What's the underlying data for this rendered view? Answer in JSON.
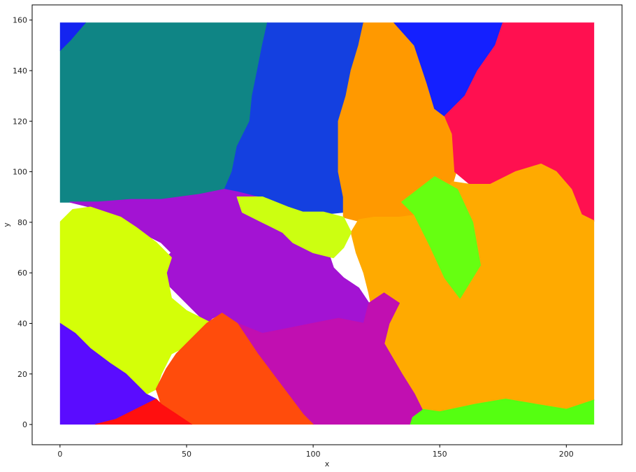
{
  "chart_data": {
    "type": "heatmap",
    "title": "",
    "xlabel": "x",
    "ylabel": "y",
    "xlim": [
      -11,
      222
    ],
    "ylim": [
      -8,
      166
    ],
    "data_extent": {
      "x": [
        0,
        211
      ],
      "y": [
        0,
        159
      ]
    },
    "x_ticks": [
      0,
      50,
      100,
      150,
      200
    ],
    "y_ticks": [
      0,
      20,
      40,
      60,
      80,
      100,
      120,
      140,
      160
    ],
    "grid": false,
    "legend": "none",
    "regions": [
      {
        "name": "teal",
        "color": "#0f8585",
        "polygon": [
          [
            0,
            148
          ],
          [
            4,
            152
          ],
          [
            10,
            159
          ],
          [
            82,
            159
          ],
          [
            80,
            150
          ],
          [
            78,
            140
          ],
          [
            76,
            130
          ],
          [
            75,
            120
          ],
          [
            70,
            110
          ],
          [
            68,
            100
          ],
          [
            65,
            93
          ],
          [
            55,
            91
          ],
          [
            40,
            89
          ],
          [
            28,
            89
          ],
          [
            15,
            88
          ],
          [
            4,
            88
          ],
          [
            0,
            88
          ]
        ]
      },
      {
        "name": "blue-left",
        "color": "#1424f0",
        "polygon": [
          [
            0,
            148
          ],
          [
            0,
            159
          ],
          [
            10,
            159
          ],
          [
            4,
            152
          ]
        ]
      },
      {
        "name": "blue-center",
        "color": "#1440e0",
        "polygon": [
          [
            82,
            159
          ],
          [
            120,
            159
          ],
          [
            118,
            150
          ],
          [
            115,
            140
          ],
          [
            113,
            130
          ],
          [
            110,
            120
          ],
          [
            110,
            110
          ],
          [
            110,
            100
          ],
          [
            112,
            90
          ],
          [
            112,
            84
          ],
          [
            102,
            83
          ],
          [
            95,
            84
          ],
          [
            90,
            86
          ],
          [
            80,
            90
          ],
          [
            70,
            92
          ],
          [
            65,
            93
          ],
          [
            68,
            100
          ],
          [
            70,
            110
          ],
          [
            75,
            120
          ],
          [
            76,
            130
          ],
          [
            78,
            140
          ],
          [
            80,
            150
          ]
        ]
      },
      {
        "name": "orange-top",
        "color": "#ff9900",
        "polygon": [
          [
            120,
            159
          ],
          [
            132,
            159
          ],
          [
            140,
            150
          ],
          [
            145,
            135
          ],
          [
            150,
            125
          ],
          [
            155,
            115
          ],
          [
            158,
            105
          ],
          [
            155,
            95
          ],
          [
            150,
            85
          ],
          [
            140,
            80
          ],
          [
            130,
            80
          ],
          [
            120,
            80
          ],
          [
            112,
            82
          ],
          [
            112,
            90
          ],
          [
            110,
            100
          ],
          [
            110,
            110
          ],
          [
            110,
            120
          ],
          [
            113,
            130
          ],
          [
            115,
            140
          ],
          [
            118,
            150
          ]
        ]
      },
      {
        "name": "blue-right",
        "color": "#1420ff",
        "polygon": [
          [
            132,
            159
          ],
          [
            175,
            159
          ],
          [
            172,
            150
          ],
          [
            165,
            140
          ],
          [
            160,
            130
          ],
          [
            152,
            122
          ],
          [
            148,
            125
          ],
          [
            145,
            135
          ],
          [
            140,
            150
          ]
        ]
      },
      {
        "name": "crimson",
        "color": "#ff1050",
        "polygon": [
          [
            175,
            159
          ],
          [
            212,
            159
          ],
          [
            212,
            80
          ],
          [
            206,
            83
          ],
          [
            202,
            93
          ],
          [
            196,
            100
          ],
          [
            190,
            103
          ],
          [
            180,
            100
          ],
          [
            170,
            95
          ],
          [
            162,
            95
          ],
          [
            156,
            100
          ],
          [
            155,
            115
          ],
          [
            152,
            122
          ],
          [
            160,
            130
          ],
          [
            165,
            140
          ],
          [
            172,
            150
          ]
        ]
      },
      {
        "name": "orange-right",
        "color": "#ffaa00",
        "polygon": [
          [
            212,
            80
          ],
          [
            212,
            10
          ],
          [
            200,
            6
          ],
          [
            188,
            8
          ],
          [
            176,
            10
          ],
          [
            164,
            8
          ],
          [
            150,
            5
          ],
          [
            143,
            6
          ],
          [
            140,
            12
          ],
          [
            135,
            20
          ],
          [
            128,
            32
          ],
          [
            124,
            42
          ],
          [
            122,
            52
          ],
          [
            120,
            60
          ],
          [
            117,
            68
          ],
          [
            115,
            76
          ],
          [
            118,
            81
          ],
          [
            124,
            82
          ],
          [
            134,
            82
          ],
          [
            142,
            83
          ],
          [
            148,
            89
          ],
          [
            155,
            96
          ],
          [
            162,
            95
          ],
          [
            170,
            95
          ],
          [
            180,
            100
          ],
          [
            190,
            103
          ],
          [
            196,
            100
          ],
          [
            202,
            93
          ],
          [
            206,
            83
          ]
        ]
      },
      {
        "name": "lime-green",
        "color": "#66ff11",
        "polygon": [
          [
            135,
            88
          ],
          [
            140,
            83
          ],
          [
            146,
            71
          ],
          [
            152,
            58
          ],
          [
            158,
            50
          ],
          [
            166,
            63
          ],
          [
            163,
            80
          ],
          [
            157,
            93
          ],
          [
            148,
            98
          ]
        ]
      },
      {
        "name": "green-bottom",
        "color": "#55ff11",
        "polygon": [
          [
            138,
            0
          ],
          [
            212,
            0
          ],
          [
            212,
            10
          ],
          [
            200,
            6
          ],
          [
            188,
            8
          ],
          [
            176,
            10
          ],
          [
            164,
            8
          ],
          [
            150,
            5
          ],
          [
            143,
            6
          ],
          [
            139,
            3
          ]
        ]
      },
      {
        "name": "purple",
        "color": "#a313d3",
        "polygon": [
          [
            28,
            89
          ],
          [
            40,
            89
          ],
          [
            55,
            91
          ],
          [
            65,
            93
          ],
          [
            70,
            92
          ],
          [
            78,
            90
          ],
          [
            82,
            86
          ],
          [
            88,
            83
          ],
          [
            96,
            78
          ],
          [
            102,
            72
          ],
          [
            106,
            68
          ],
          [
            108,
            62
          ],
          [
            112,
            58
          ],
          [
            118,
            54
          ],
          [
            122,
            48
          ],
          [
            120,
            40
          ],
          [
            110,
            42
          ],
          [
            100,
            40
          ],
          [
            90,
            38
          ],
          [
            80,
            36
          ],
          [
            70,
            40
          ],
          [
            64,
            44
          ],
          [
            60,
            42
          ],
          [
            58,
            40
          ],
          [
            52,
            46
          ],
          [
            42,
            56
          ],
          [
            38,
            60
          ],
          [
            40,
            64
          ],
          [
            44,
            68
          ],
          [
            40,
            72
          ],
          [
            30,
            77
          ],
          [
            20,
            82
          ],
          [
            12,
            86
          ],
          [
            4,
            88
          ],
          [
            15,
            88
          ]
        ]
      },
      {
        "name": "magenta",
        "color": "#c10fb1",
        "polygon": [
          [
            70,
            40
          ],
          [
            80,
            36
          ],
          [
            90,
            38
          ],
          [
            100,
            40
          ],
          [
            110,
            42
          ],
          [
            120,
            40
          ],
          [
            122,
            48
          ],
          [
            128,
            52
          ],
          [
            134,
            48
          ],
          [
            130,
            40
          ],
          [
            128,
            32
          ],
          [
            135,
            20
          ],
          [
            140,
            12
          ],
          [
            143,
            6
          ],
          [
            139,
            3
          ],
          [
            138,
            0
          ],
          [
            100,
            0
          ],
          [
            96,
            4
          ],
          [
            90,
            12
          ],
          [
            84,
            20
          ],
          [
            78,
            28
          ],
          [
            74,
            34
          ]
        ]
      },
      {
        "name": "yellow-mid",
        "color": "#ccff11",
        "polygon": [
          [
            70,
            90
          ],
          [
            80,
            90
          ],
          [
            90,
            86
          ],
          [
            96,
            84
          ],
          [
            104,
            84
          ],
          [
            112,
            82
          ],
          [
            115,
            76
          ],
          [
            112,
            70
          ],
          [
            108,
            66
          ],
          [
            100,
            68
          ],
          [
            92,
            72
          ],
          [
            88,
            76
          ],
          [
            80,
            80
          ],
          [
            72,
            84
          ]
        ]
      },
      {
        "name": "yellow-left",
        "color": "#d4ff08",
        "polygon": [
          [
            0,
            80
          ],
          [
            5,
            85
          ],
          [
            12,
            86
          ],
          [
            18,
            84
          ],
          [
            24,
            82
          ],
          [
            30,
            78
          ],
          [
            38,
            72
          ],
          [
            44,
            66
          ],
          [
            42,
            60
          ],
          [
            44,
            50
          ],
          [
            50,
            45
          ],
          [
            56,
            42
          ],
          [
            60,
            40
          ],
          [
            55,
            35
          ],
          [
            48,
            30
          ],
          [
            44,
            28
          ],
          [
            40,
            20
          ],
          [
            38,
            14
          ],
          [
            34,
            12
          ],
          [
            30,
            16
          ],
          [
            26,
            20
          ],
          [
            20,
            24
          ],
          [
            12,
            30
          ],
          [
            6,
            36
          ],
          [
            0,
            40
          ]
        ]
      },
      {
        "name": "violet",
        "color": "#5a0cff",
        "polygon": [
          [
            0,
            0
          ],
          [
            0,
            40
          ],
          [
            6,
            36
          ],
          [
            12,
            30
          ],
          [
            20,
            24
          ],
          [
            26,
            20
          ],
          [
            30,
            16
          ],
          [
            34,
            12
          ],
          [
            38,
            10
          ],
          [
            30,
            6
          ],
          [
            22,
            2
          ],
          [
            14,
            0
          ]
        ]
      },
      {
        "name": "red-orange",
        "color": "#ff4c0c",
        "polygon": [
          [
            52,
            0
          ],
          [
            100,
            0
          ],
          [
            96,
            4
          ],
          [
            90,
            12
          ],
          [
            84,
            20
          ],
          [
            78,
            28
          ],
          [
            74,
            34
          ],
          [
            70,
            40
          ],
          [
            64,
            44
          ],
          [
            58,
            40
          ],
          [
            52,
            34
          ],
          [
            46,
            28
          ],
          [
            42,
            22
          ],
          [
            38,
            14
          ],
          [
            40,
            8
          ],
          [
            46,
            4
          ]
        ]
      },
      {
        "name": "red-bottom",
        "color": "#ff0f0f",
        "polygon": [
          [
            14,
            0
          ],
          [
            52,
            0
          ],
          [
            46,
            4
          ],
          [
            40,
            8
          ],
          [
            38,
            10
          ],
          [
            30,
            6
          ],
          [
            22,
            2
          ]
        ]
      }
    ]
  }
}
